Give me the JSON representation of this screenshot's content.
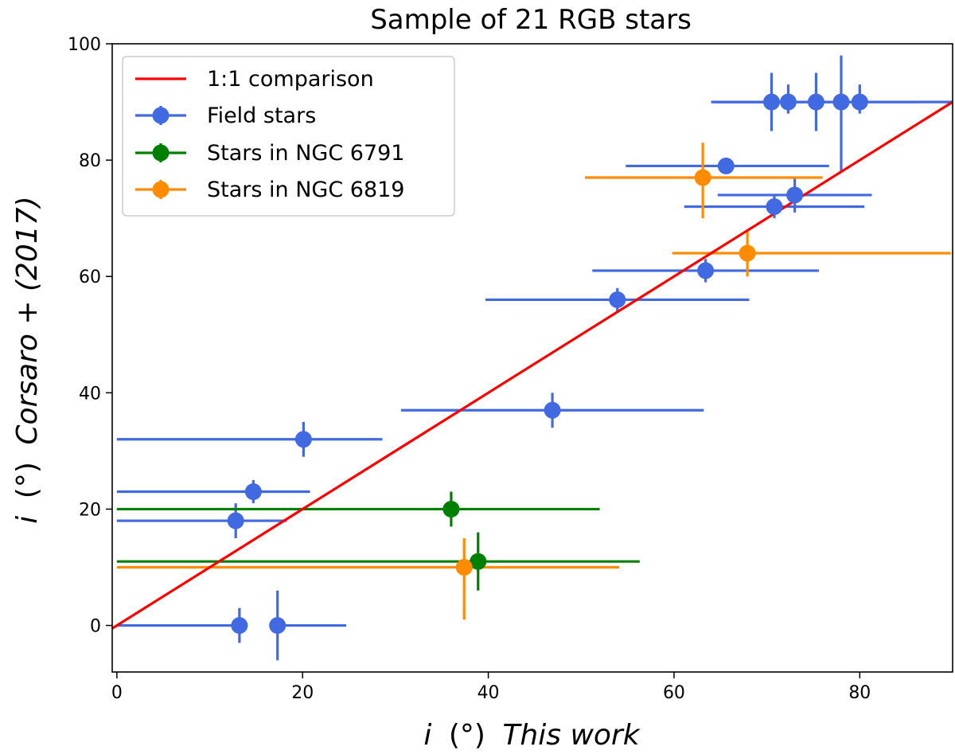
{
  "chart_data": {
    "type": "scatter",
    "title": "Sample of 21 RGB stars",
    "xlabel_var": "i",
    "xlabel_unit": "(°)",
    "xlabel_text": "This work",
    "ylabel_var": "i",
    "ylabel_unit": "(°)",
    "ylabel_text": "Corsaro + (2017)",
    "xlim": [
      -0.5,
      90
    ],
    "ylim": [
      -8,
      100
    ],
    "xticks": [
      0,
      20,
      40,
      60,
      80
    ],
    "yticks": [
      0,
      20,
      40,
      60,
      80,
      100
    ],
    "grid": false,
    "legend_position": "top-left",
    "reference_line": {
      "name": "1:1 comparison",
      "color": "#ff0000",
      "x": [
        -0.5,
        90
      ],
      "y": [
        -0.5,
        90
      ]
    },
    "series": [
      {
        "name": "Field stars",
        "color": "#4169e1",
        "points": [
          {
            "x": 70.5,
            "y": 90,
            "xerr": [
              6.3,
              6.3
            ],
            "yerr": [
              5,
              5
            ]
          },
          {
            "x": 72.3,
            "y": 90,
            "xerr": [
              8,
              8
            ],
            "yerr": [
              2,
              3
            ]
          },
          {
            "x": 75.3,
            "y": 90,
            "xerr": [
              11,
              11
            ],
            "yerr": [
              5,
              5
            ]
          },
          {
            "x": 78,
            "y": 90,
            "xerr": [
              14,
              12
            ],
            "yerr": [
              12,
              8
            ]
          },
          {
            "x": 80,
            "y": 90,
            "xerr": [
              16,
              10
            ],
            "yerr": [
              2,
              3
            ]
          },
          {
            "x": 65.6,
            "y": 79,
            "xerr": [
              10.8,
              11.1
            ]
          },
          {
            "x": 73,
            "y": 74,
            "xerr": [
              8.3,
              8.3
            ],
            "yerr": [
              3,
              3
            ]
          },
          {
            "x": 70.8,
            "y": 72,
            "xerr": [
              9.7,
              9.7
            ],
            "yerr": [
              2,
              2
            ]
          },
          {
            "x": 63.4,
            "y": 61,
            "xerr": [
              12.2,
              12.2
            ],
            "yerr": [
              2,
              2
            ]
          },
          {
            "x": 53.9,
            "y": 56,
            "xerr": [
              14.2,
              14.2
            ],
            "yerr": [
              2,
              2
            ]
          },
          {
            "x": 46.9,
            "y": 37,
            "xerr": [
              16.3,
              16.3
            ],
            "yerr": [
              3,
              3
            ]
          },
          {
            "x": 20.1,
            "y": 32,
            "xerr": [
              20.1,
              8.5
            ],
            "yerr": [
              3,
              3
            ]
          },
          {
            "x": 14.7,
            "y": 23,
            "xerr": [
              14.7,
              6.1
            ],
            "yerr": [
              2,
              2
            ]
          },
          {
            "x": 12.8,
            "y": 18,
            "xerr": [
              12.8,
              5.5
            ],
            "yerr": [
              3,
              3
            ]
          },
          {
            "x": 13.2,
            "y": 0,
            "xerr": [
              13.2,
              0
            ],
            "yerr": [
              3,
              3
            ]
          },
          {
            "x": 17.3,
            "y": 0,
            "xerr": [
              0,
              7.4
            ],
            "yerr": [
              6,
              6
            ]
          }
        ]
      },
      {
        "name": "Stars in NGC 6791",
        "color": "#008000",
        "points": [
          {
            "x": 36,
            "y": 20,
            "xerr": [
              36,
              16
            ],
            "yerr": [
              3,
              3
            ]
          },
          {
            "x": 38.9,
            "y": 11,
            "xerr": [
              38.9,
              17.4
            ],
            "yerr": [
              5,
              5
            ]
          }
        ]
      },
      {
        "name": "Stars in NGC 6819",
        "color": "#ff8c00",
        "points": [
          {
            "x": 63.1,
            "y": 77,
            "xerr": [
              12.7,
              12.9
            ],
            "yerr": [
              7,
              6
            ]
          },
          {
            "x": 67.9,
            "y": 64,
            "xerr": [
              8.1,
              21.9
            ],
            "yerr": [
              4,
              4
            ]
          },
          {
            "x": 37.4,
            "y": 10,
            "xerr": [
              37.4,
              16.7
            ],
            "yerr": [
              9,
              5
            ]
          }
        ]
      }
    ]
  }
}
